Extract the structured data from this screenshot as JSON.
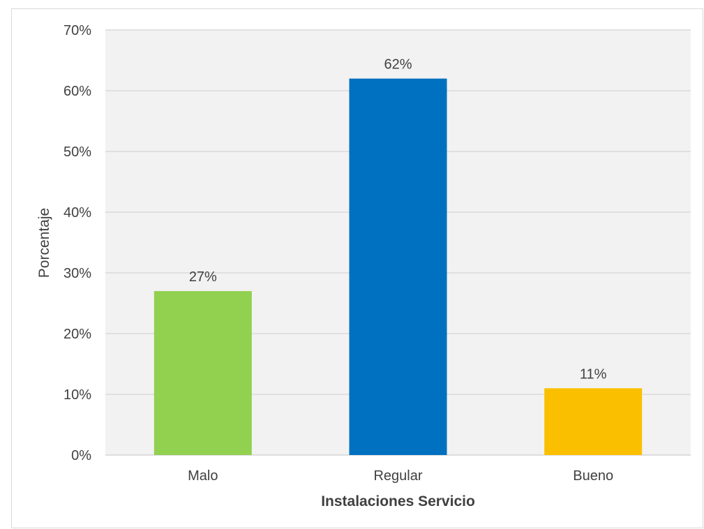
{
  "chart_data": {
    "type": "bar",
    "title": "",
    "xlabel": "Instalaciones Servicio",
    "ylabel": "Porcentaje",
    "categories": [
      "Malo",
      "Regular",
      "Bueno"
    ],
    "values": [
      27,
      62,
      11
    ],
    "value_labels": [
      "27%",
      "62%",
      "11%"
    ],
    "bar_colors": [
      "#92d050",
      "#0070c0",
      "#fac000"
    ],
    "ylim": [
      0,
      70
    ],
    "yticks": [
      0,
      10,
      20,
      30,
      40,
      50,
      60,
      70
    ],
    "ytick_labels": [
      "0%",
      "10%",
      "20%",
      "30%",
      "40%",
      "50%",
      "60%",
      "70%"
    ],
    "grid": true,
    "plot_background": "#f2f2f2",
    "gridline_color": "#d9d9d9",
    "legend": "none"
  }
}
